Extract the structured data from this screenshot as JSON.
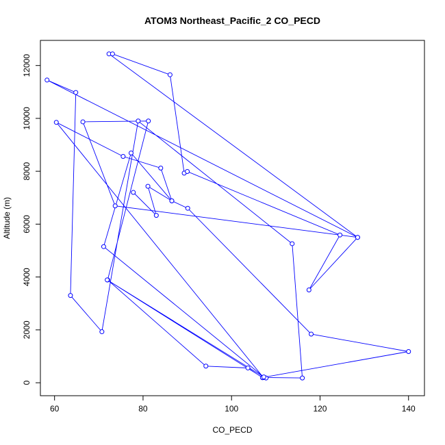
{
  "chart_data": {
    "type": "line",
    "title": "ATOM3 Northeast_Pacific_2 CO_PECD",
    "xlabel": "CO_PECD",
    "ylabel": "Altitude (m)",
    "xlim": [
      56.8,
      143.6
    ],
    "ylim": [
      -490,
      12950
    ],
    "xticks": [
      60,
      80,
      100,
      120,
      140
    ],
    "yticks": [
      0,
      2000,
      4000,
      6000,
      8000,
      10000,
      12000
    ],
    "grid": false,
    "markers": "open-circle",
    "line_color": "#0000ff",
    "series": [
      {
        "x": [
          107.8,
          107.0,
          103.7,
          94.2,
          72.0,
          81.2,
          66.4,
          73.7,
          128.5,
          72.3,
          73.1,
          86.1,
          89.3,
          90.0,
          124.5,
          117.5,
          128.5,
          58.3,
          64.8,
          63.6,
          70.7,
          78.9,
          113.7,
          116.0,
          107.2,
          60.4,
          75.5,
          84.0,
          86.5,
          90.1,
          118.0,
          140.0,
          107.0,
          71.9,
          107.3,
          71.1,
          77.3,
          86.5,
          81.1,
          83.0,
          77.8
        ],
        "y": [
          180,
          190,
          560,
          630,
          3890,
          9900,
          9870,
          6690,
          5500,
          12440,
          12440,
          11650,
          7930,
          7990,
          5590,
          3510,
          5500,
          11450,
          10980,
          3300,
          1930,
          9900,
          5260,
          180,
          200,
          9850,
          8560,
          8120,
          6880,
          6600,
          1840,
          1180,
          200,
          3890,
          220,
          5150,
          8690,
          6880,
          7430,
          6330,
          7200
        ]
      }
    ]
  }
}
